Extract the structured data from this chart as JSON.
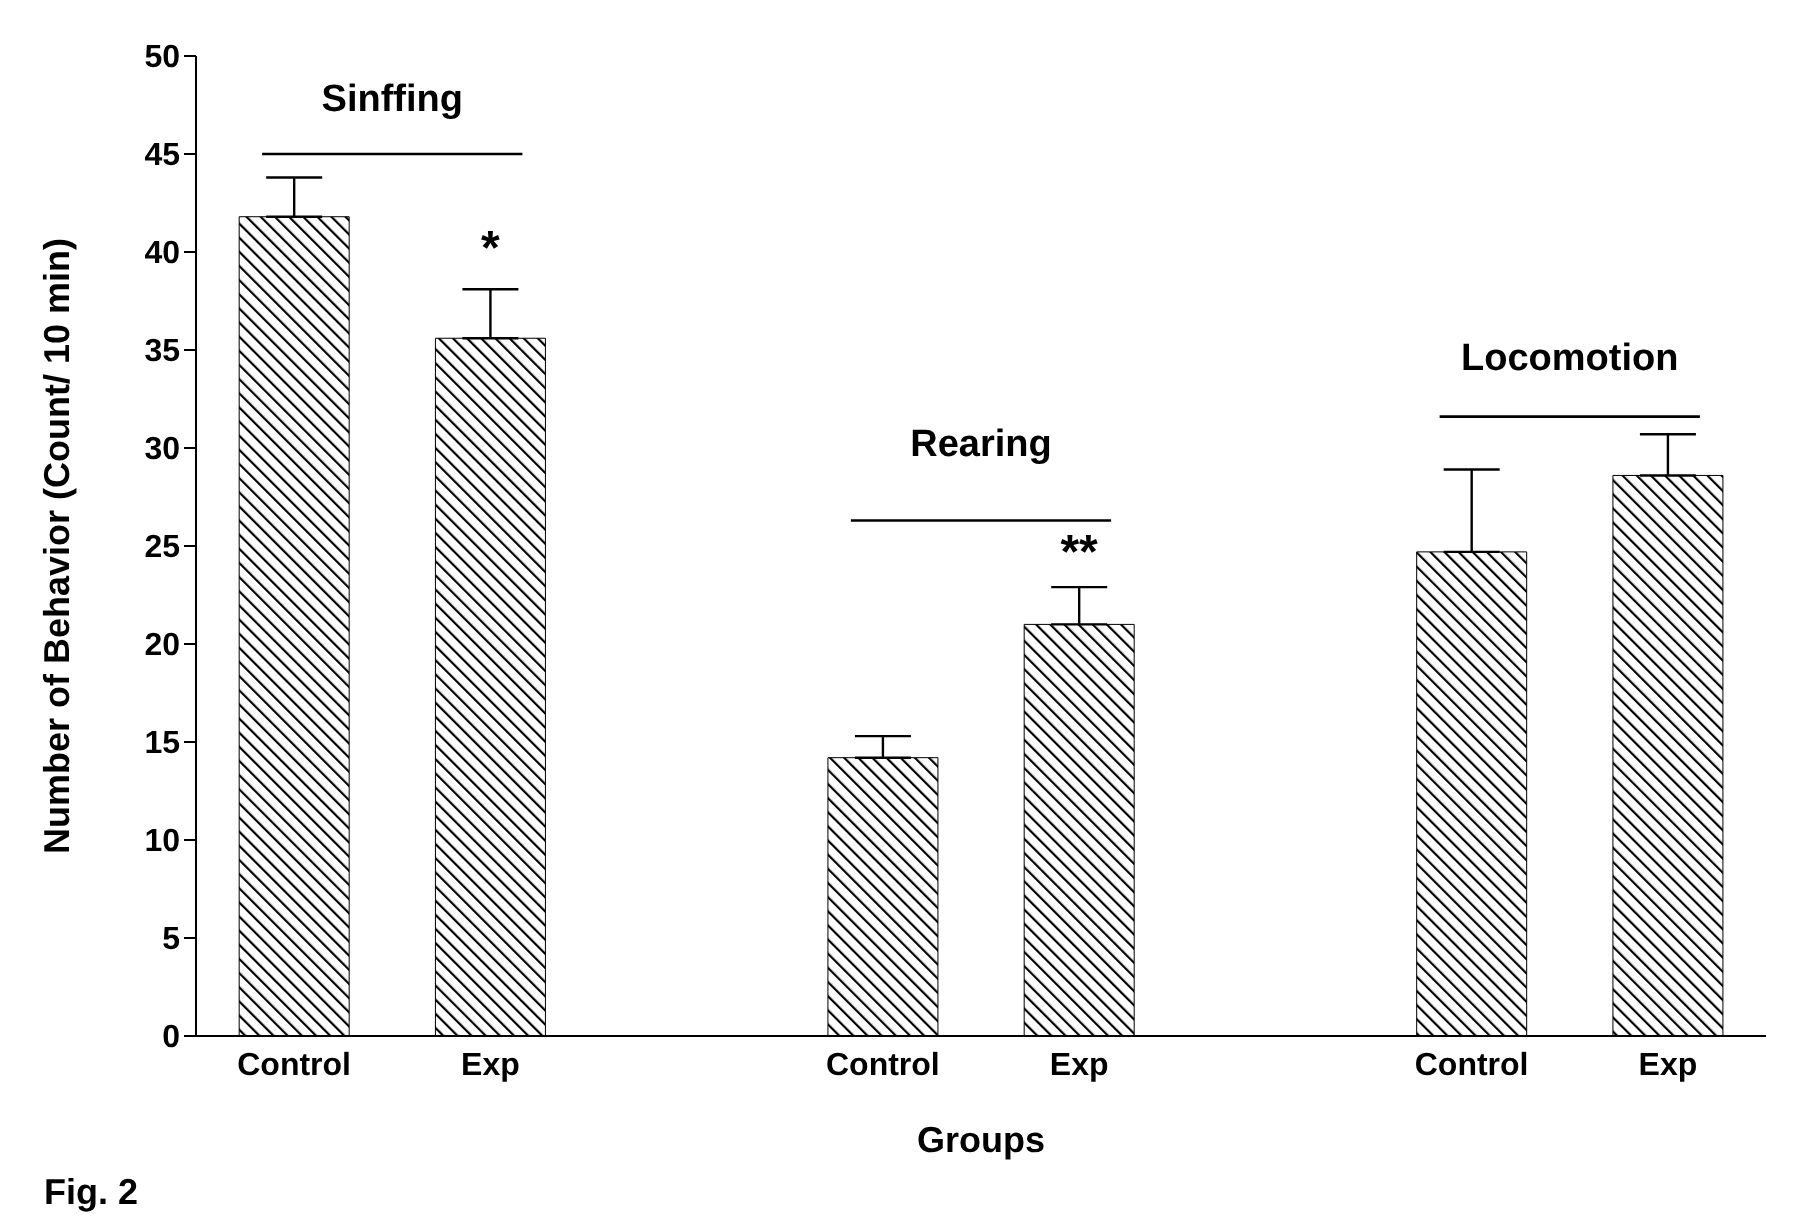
{
  "chart_data": {
    "type": "bar",
    "ylabel": "Number of Behavior (Count/ 10 min)",
    "xlabel": "Groups",
    "categories": [
      "Control",
      "Exp",
      null,
      "Control",
      "Exp",
      null,
      "Control",
      "Exp"
    ],
    "values": [
      41.8,
      35.6,
      null,
      14.2,
      21.0,
      null,
      24.7,
      28.6
    ],
    "errors": [
      [
        41.8,
        43.8
      ],
      [
        35.6,
        38.1
      ],
      null,
      [
        14.2,
        15.3
      ],
      [
        21.0,
        22.9
      ],
      null,
      [
        24.7,
        28.9
      ],
      [
        28.6,
        30.7
      ]
    ],
    "color": "#000000",
    "ylim": [
      0,
      50
    ],
    "yticks": [
      0,
      5,
      10,
      15,
      20,
      25,
      30,
      35,
      40,
      45,
      50
    ],
    "annotations": [
      "Sinffing",
      "Rearing",
      "Locomotion",
      "*",
      "**",
      "Fig. 2"
    ]
  }
}
